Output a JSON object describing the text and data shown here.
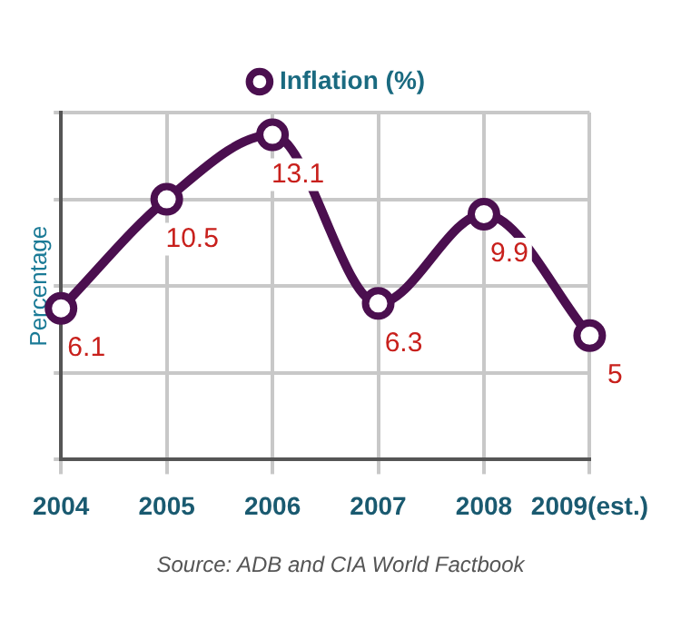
{
  "chart_data": {
    "type": "line",
    "ylabel": "Percentage",
    "categories": [
      "2004",
      "2005",
      "2006",
      "2007",
      "2008",
      "2009(est.)"
    ],
    "series": [
      {
        "name": "Inflation (%)",
        "color": "#4b0f4f",
        "values": [
          6.1,
          10.5,
          13.1,
          6.3,
          9.9,
          5
        ]
      }
    ],
    "ylim": [
      0,
      14
    ],
    "yticks": [
      {
        "value": 0,
        "label": null
      },
      {
        "value": 3.5,
        "label": null
      },
      {
        "value": 7,
        "label": null
      },
      {
        "value": 10.5,
        "label": null
      },
      {
        "value": 14,
        "label": null
      }
    ],
    "tick_labels": "x",
    "grid": true,
    "legend": "top",
    "marker": "circle",
    "line_style": "solid",
    "data_labels": true,
    "annotations": [
      "Source: ADB and CIA World Factbook"
    ]
  }
}
